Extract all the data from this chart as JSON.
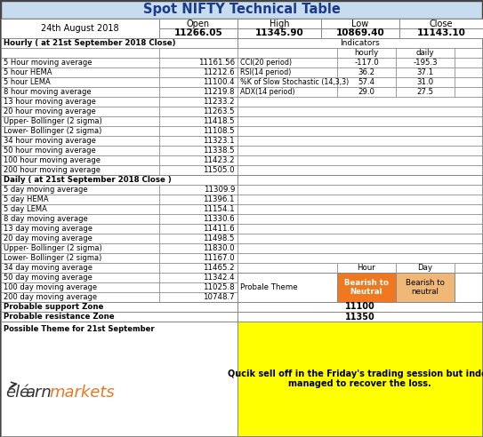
{
  "title": "Spot NIFTY Technical Table",
  "date": "24th August 2018",
  "open": "11266.05",
  "high": "11345.90",
  "low": "10869.40",
  "close": "11143.10",
  "hourly_rows": [
    [
      "5 Hour moving average",
      "11161.56"
    ],
    [
      "5 hour HEMA",
      "11212.6"
    ],
    [
      "5 hour LEMA",
      "11100.4"
    ],
    [
      "8 hour moving average",
      "11219.8"
    ],
    [
      "13 hour moving average",
      "11233.2"
    ],
    [
      "20 hour moving average",
      "11263.5"
    ],
    [
      "Upper- Bollinger (2 sigma)",
      "11418.5"
    ],
    [
      "Lower- Bollinger (2 sigma)",
      "11108.5"
    ],
    [
      "34 hour moving average",
      "11323.1"
    ],
    [
      "50 hour moving average",
      "11338.5"
    ],
    [
      "100 hour moving average",
      "11423.2"
    ],
    [
      "200 hour moving average",
      "11505.0"
    ]
  ],
  "daily_rows": [
    [
      "5 day moving average",
      "11309.9"
    ],
    [
      "5 day HEMA",
      "11396.1"
    ],
    [
      "5 day LEMA",
      "11154.1"
    ],
    [
      "8 day moving average",
      "11330.6"
    ],
    [
      "13 day moving average",
      "11411.6"
    ],
    [
      "20 day moving average",
      "11498.5"
    ],
    [
      "Upper- Bollinger (2 sigma)",
      "11830.0"
    ],
    [
      "Lower- Bollinger (2 sigma)",
      "11167.0"
    ],
    [
      "34 day moving average",
      "11465.2"
    ],
    [
      "50 day moving average",
      "11342.4"
    ],
    [
      "100 day moving average",
      "11025.8"
    ],
    [
      "200 day moving average",
      "10748.7"
    ]
  ],
  "indicators": [
    [
      "CCI(20 period)",
      "-117.0",
      "-195.3"
    ],
    [
      "RSI(14 period)",
      "36.2",
      "37.1"
    ],
    [
      "%K of Slow Stochastic (14,3,3)",
      "57.4",
      "31.0"
    ],
    [
      "ADX(14 period)",
      "29.0",
      "27.5"
    ]
  ],
  "probable_support": "11100",
  "probable_resistance": "11350",
  "bottom_text": "Qucik sell off in the Friday's trading session but index\nmanaged to recover the loss.",
  "possible_theme_label": "Possible Theme for 21st September",
  "probale_theme_label": "Probale Theme",
  "hour_theme": "Bearish to\nNeutral",
  "day_theme": "Bearish to\nneutral",
  "hour_theme_color": "#F07820",
  "day_theme_color": "#F0B878",
  "title_bg": "#C8DCF0",
  "yellow_bg": "#FFFF00",
  "border_color": "#444444",
  "cell_border": "#888888",
  "title_color": "#1A3A8A"
}
